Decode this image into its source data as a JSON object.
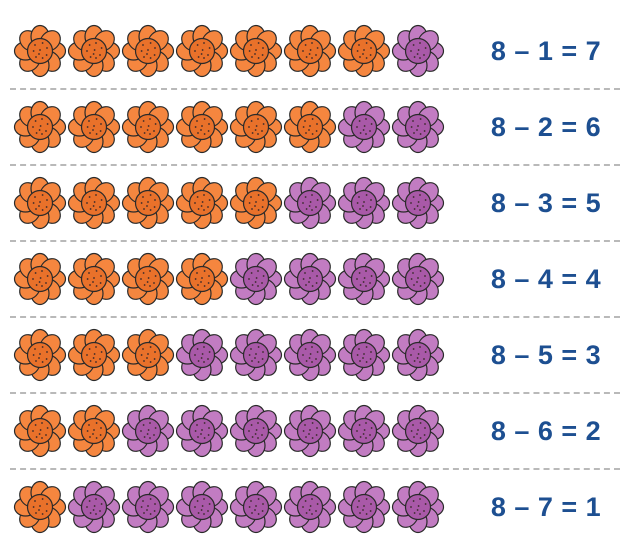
{
  "colors": {
    "orange_flower": "#f5863f",
    "orange_center": "#e9712a",
    "purple_flower": "#c27cc2",
    "purple_center": "#a959a8",
    "equation_text": "#1d4f91",
    "divider": "#b9b9b9"
  },
  "icons": {
    "orange": "orange-flower-icon",
    "purple": "purple-flower-icon"
  },
  "rows": [
    {
      "total": 8,
      "crossed": 1,
      "equation": "8 – 1 = 7"
    },
    {
      "total": 8,
      "crossed": 2,
      "equation": "8 – 2 = 6"
    },
    {
      "total": 8,
      "crossed": 3,
      "equation": "8 – 3 = 5"
    },
    {
      "total": 8,
      "crossed": 4,
      "equation": "8 – 4 = 4"
    },
    {
      "total": 8,
      "crossed": 5,
      "equation": "8 – 5 = 3"
    },
    {
      "total": 8,
      "crossed": 6,
      "equation": "8 – 6 = 2"
    },
    {
      "total": 8,
      "crossed": 7,
      "equation": "8 – 7 = 1"
    }
  ]
}
